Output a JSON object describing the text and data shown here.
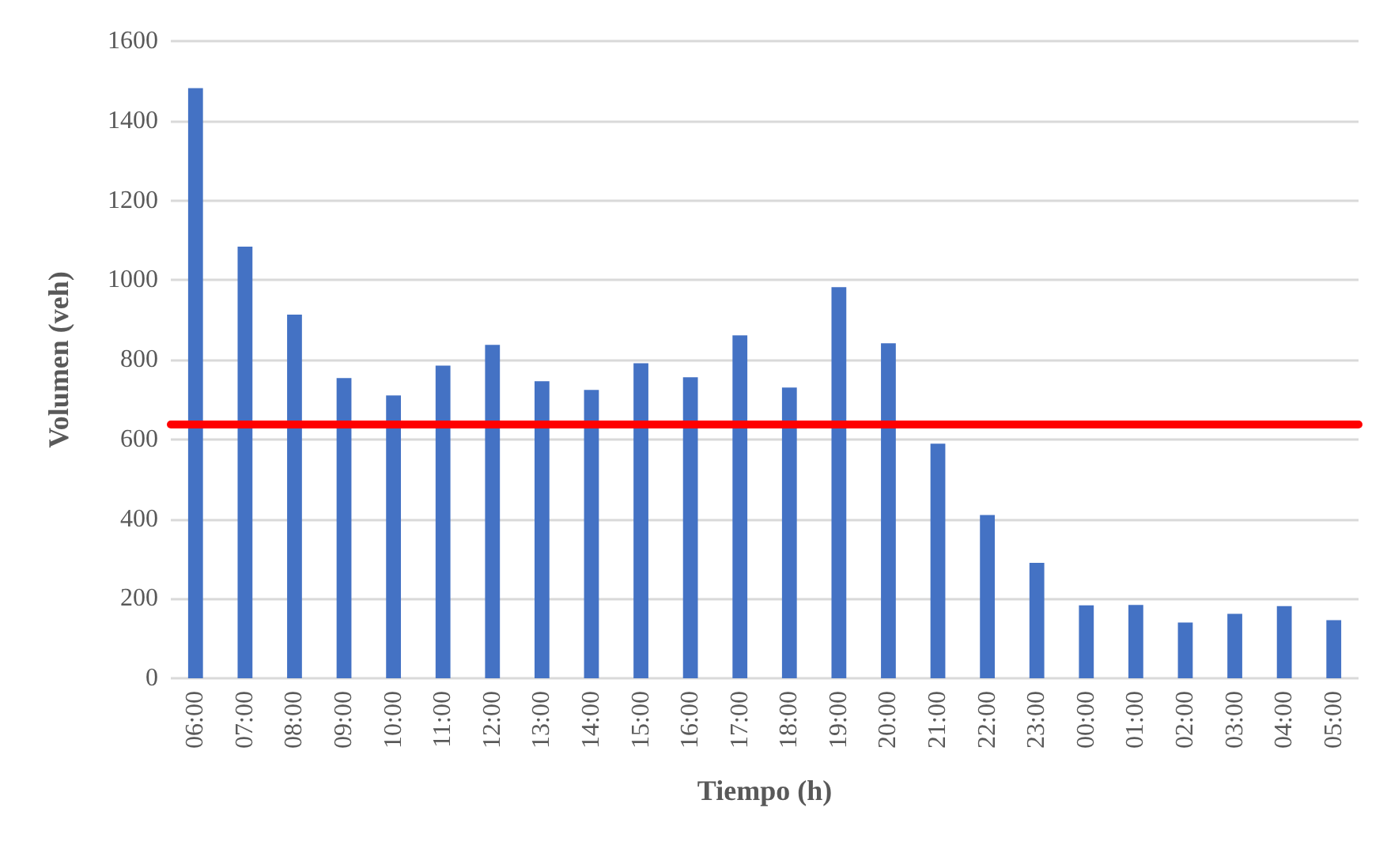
{
  "chart_data": {
    "type": "bar",
    "xlabel": "Tiempo (h)",
    "ylabel": "Volumen (veh)",
    "categories": [
      "06:00",
      "07:00",
      "08:00",
      "09:00",
      "10:00",
      "11:00",
      "12:00",
      "13:00",
      "14:00",
      "15:00",
      "16:00",
      "17:00",
      "18:00",
      "19:00",
      "20:00",
      "21:00",
      "22:00",
      "23:00",
      "00:00",
      "01:00",
      "02:00",
      "03:00",
      "04:00",
      "05:00"
    ],
    "values": [
      1482,
      1084,
      913,
      754,
      710,
      785,
      837,
      746,
      724,
      791,
      756,
      861,
      730,
      982,
      841,
      589,
      410,
      290,
      183,
      184,
      140,
      162,
      181,
      146
    ],
    "color": "#4472c4",
    "ylim": [
      0,
      1600
    ],
    "yticks": [
      0,
      200,
      400,
      600,
      800,
      1000,
      1200,
      1400,
      1600
    ],
    "grid": "y",
    "ref_lines": [
      {
        "axis": "y",
        "value": 639,
        "color": "#ff0000"
      }
    ]
  }
}
